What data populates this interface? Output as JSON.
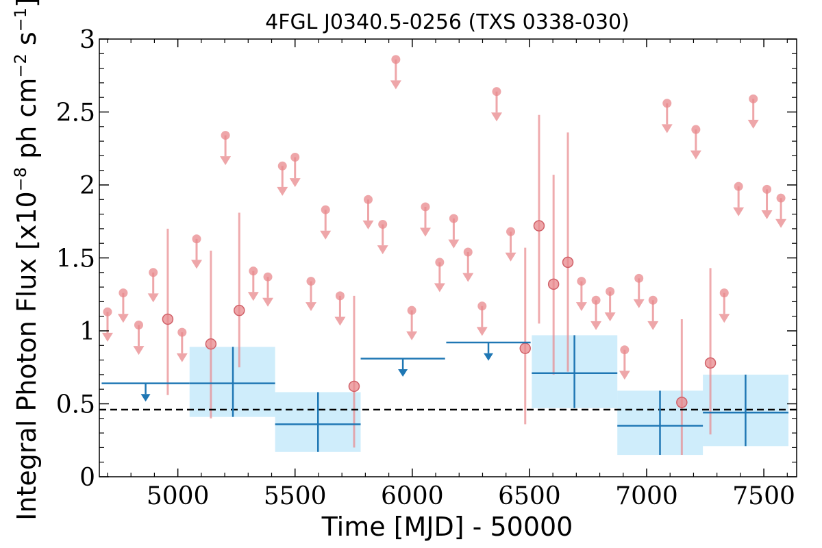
{
  "chart_data": {
    "type": "scatter",
    "title": "4FGL J0340.5-0256 (TXS 0338-030)",
    "xlabel": "Time [MJD] - 50000",
    "ylabel": "Integral Photon Flux [x10^-8 ph cm^-2 s^-1]",
    "ylabel_parts": {
      "prefix": "Integral Photon Flux [x10",
      "exp1": "−8",
      "mid": " ph cm",
      "exp2": "−2",
      "mid2": " s",
      "exp3": "−1",
      "suffix": "]"
    },
    "xlim": [
      4665,
      7640
    ],
    "ylim": [
      0,
      3
    ],
    "xticks": [
      5000,
      5500,
      6000,
      6500,
      7000,
      7500
    ],
    "yticks": [
      0,
      0.5,
      1,
      1.5,
      2,
      2.5,
      3
    ],
    "ytick_labels": [
      "0",
      "0.5",
      "1",
      "1.5",
      "2",
      "2.5",
      "3"
    ],
    "reference_line": {
      "y": 0.46,
      "style": "dashed"
    },
    "colors": {
      "fine": "#e8888c",
      "coarse": "#1f77b4",
      "band": "#a7dff7",
      "reference": "#000000"
    },
    "series": [
      {
        "bin": "fine",
        "upper_limits": [
          {
            "x": 4700,
            "y": 1.13
          },
          {
            "x": 4767,
            "y": 1.26
          },
          {
            "x": 4833,
            "y": 1.04
          },
          {
            "x": 4895,
            "y": 1.4
          },
          {
            "x": 5018,
            "y": 0.99
          },
          {
            "x": 5080,
            "y": 1.63
          },
          {
            "x": 5203,
            "y": 2.34
          },
          {
            "x": 5322,
            "y": 1.41
          },
          {
            "x": 5384,
            "y": 1.37
          },
          {
            "x": 5446,
            "y": 2.13
          },
          {
            "x": 5500,
            "y": 2.19
          },
          {
            "x": 5568,
            "y": 1.34
          },
          {
            "x": 5630,
            "y": 1.83
          },
          {
            "x": 5692,
            "y": 1.24
          },
          {
            "x": 5812,
            "y": 1.9
          },
          {
            "x": 5874,
            "y": 1.73
          },
          {
            "x": 5930,
            "y": 2.86
          },
          {
            "x": 5998,
            "y": 1.14
          },
          {
            "x": 6056,
            "y": 1.85
          },
          {
            "x": 6117,
            "y": 1.47
          },
          {
            "x": 6177,
            "y": 1.77
          },
          {
            "x": 6238,
            "y": 1.54
          },
          {
            "x": 6298,
            "y": 1.17
          },
          {
            "x": 6360,
            "y": 2.64
          },
          {
            "x": 6420,
            "y": 1.68
          },
          {
            "x": 6722,
            "y": 1.34
          },
          {
            "x": 6784,
            "y": 1.21
          },
          {
            "x": 6844,
            "y": 1.27
          },
          {
            "x": 6906,
            "y": 0.87
          },
          {
            "x": 6967,
            "y": 1.36
          },
          {
            "x": 7027,
            "y": 1.21
          },
          {
            "x": 7087,
            "y": 2.56
          },
          {
            "x": 7210,
            "y": 2.38
          },
          {
            "x": 7331,
            "y": 1.26
          },
          {
            "x": 7392,
            "y": 1.99
          },
          {
            "x": 7455,
            "y": 2.59
          },
          {
            "x": 7513,
            "y": 1.97
          },
          {
            "x": 7573,
            "y": 1.91
          }
        ],
        "detections": [
          {
            "x": 4957,
            "y": 1.08,
            "ylo": 0.56,
            "yhi": 1.7
          },
          {
            "x": 5141,
            "y": 0.91,
            "ylo": 0.4,
            "yhi": 1.55
          },
          {
            "x": 5262,
            "y": 1.14,
            "ylo": 0.75,
            "yhi": 1.81
          },
          {
            "x": 5752,
            "y": 0.62,
            "ylo": 0.2,
            "yhi": 1.24
          },
          {
            "x": 6482,
            "y": 0.88,
            "ylo": 0.36,
            "yhi": 1.57
          },
          {
            "x": 6541,
            "y": 1.72,
            "ylo": 1.05,
            "yhi": 2.48
          },
          {
            "x": 6603,
            "y": 1.32,
            "ylo": 0.7,
            "yhi": 2.07
          },
          {
            "x": 6664,
            "y": 1.47,
            "ylo": 0.72,
            "yhi": 2.36
          },
          {
            "x": 7150,
            "y": 0.51,
            "ylo": 0.15,
            "yhi": 1.08
          },
          {
            "x": 7272,
            "y": 0.78,
            "ylo": 0.29,
            "yhi": 1.43
          }
        ]
      },
      {
        "bin": "coarse",
        "upper_limits": [
          {
            "x0": 4675,
            "x1": 5050,
            "y": 0.64
          },
          {
            "x0": 5780,
            "x1": 6140,
            "y": 0.81
          },
          {
            "x0": 6145,
            "x1": 6505,
            "y": 0.92
          }
        ],
        "detections": [
          {
            "x0": 5050,
            "x1": 5415,
            "x": 5235,
            "y": 0.64,
            "ylo": 0.41,
            "yhi": 0.89
          },
          {
            "x0": 5415,
            "x1": 5780,
            "x": 5598,
            "y": 0.36,
            "ylo": 0.17,
            "yhi": 0.58
          },
          {
            "x0": 6510,
            "x1": 6875,
            "x": 6692,
            "y": 0.71,
            "ylo": 0.47,
            "yhi": 0.97
          },
          {
            "x0": 6875,
            "x1": 7240,
            "x": 7057,
            "y": 0.35,
            "ylo": 0.15,
            "yhi": 0.59
          },
          {
            "x0": 7240,
            "x1": 7605,
            "x": 7422,
            "y": 0.44,
            "ylo": 0.21,
            "yhi": 0.7
          }
        ]
      }
    ]
  }
}
